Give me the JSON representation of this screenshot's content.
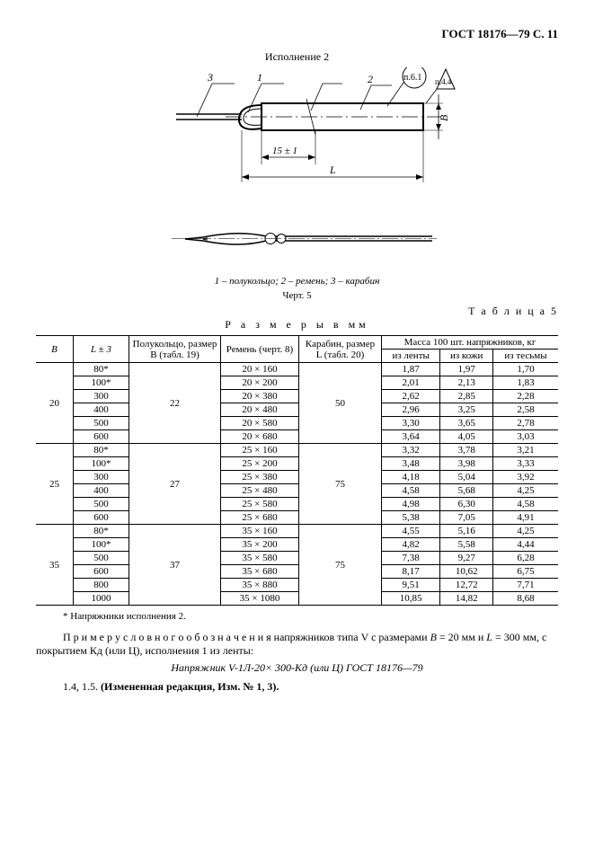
{
  "header": {
    "doc_id": "ГОСТ 18176—79 С. 11"
  },
  "drawing": {
    "variant_title": "Исполнение 2",
    "callout_1": "п.6.1",
    "callout_2": "п.4.4",
    "leader_1": "1",
    "leader_2": "2",
    "leader_3": "3",
    "dim_15": "15 ± 1",
    "dim_L": "L",
    "dim_B": "B",
    "caption_parts": "1 – полукольцо; 2 – ремень; 3 – карабин",
    "fig_label": "Черт. 5"
  },
  "table": {
    "label": "Т а б л и ц а  5",
    "units": "Р а з м е р ы  в  мм",
    "headers": {
      "B": "B",
      "L": "L ± 3",
      "ring": "Полукольцо, размер B (табл. 19)",
      "belt": "Ремень (черт. 8)",
      "carabine": "Карабин, размер L (табл. 20)",
      "mass_top": "Масса 100 шт. напряжников, кг",
      "mass_tape": "из ленты",
      "mass_leather": "из кожи",
      "mass_braid": "из тесьмы"
    },
    "groups": [
      {
        "B": "20",
        "ring": "22",
        "carabine": "50",
        "rows": [
          {
            "L": "80*",
            "belt": "20 × 160",
            "m1": "1,87",
            "m2": "1,97",
            "m3": "1,70"
          },
          {
            "L": "100*",
            "belt": "20 × 200",
            "m1": "2,01",
            "m2": "2,13",
            "m3": "1,83"
          },
          {
            "L": "300",
            "belt": "20 × 380",
            "m1": "2,62",
            "m2": "2,85",
            "m3": "2,28"
          },
          {
            "L": "400",
            "belt": "20 × 480",
            "m1": "2,96",
            "m2": "3,25",
            "m3": "2,58"
          },
          {
            "L": "500",
            "belt": "20 × 580",
            "m1": "3,30",
            "m2": "3,65",
            "m3": "2,78"
          },
          {
            "L": "600",
            "belt": "20 × 680",
            "m1": "3,64",
            "m2": "4,05",
            "m3": "3,03"
          }
        ]
      },
      {
        "B": "25",
        "ring": "27",
        "carabine": "75",
        "rows": [
          {
            "L": "80*",
            "belt": "25 × 160",
            "m1": "3,32",
            "m2": "3,78",
            "m3": "3,21"
          },
          {
            "L": "100*",
            "belt": "25 × 200",
            "m1": "3,48",
            "m2": "3,98",
            "m3": "3,33"
          },
          {
            "L": "300",
            "belt": "25 × 380",
            "m1": "4,18",
            "m2": "5,04",
            "m3": "3,92"
          },
          {
            "L": "400",
            "belt": "25 × 480",
            "m1": "4,58",
            "m2": "5,68",
            "m3": "4,25"
          },
          {
            "L": "500",
            "belt": "25 × 580",
            "m1": "4,98",
            "m2": "6,30",
            "m3": "4,58"
          },
          {
            "L": "600",
            "belt": "25 × 680",
            "m1": "5,38",
            "m2": "7,05",
            "m3": "4,91"
          }
        ]
      },
      {
        "B": "35",
        "ring": "37",
        "carabine": "75",
        "rows": [
          {
            "L": "80*",
            "belt": "35 × 160",
            "m1": "4,55",
            "m2": "5,16",
            "m3": "4,25"
          },
          {
            "L": "100*",
            "belt": "35 × 200",
            "m1": "4,82",
            "m2": "5,58",
            "m3": "4,44"
          },
          {
            "L": "500",
            "belt": "35 × 580",
            "m1": "7,38",
            "m2": "9,27",
            "m3": "6,28"
          },
          {
            "L": "600",
            "belt": "35 × 680",
            "m1": "8,17",
            "m2": "10,62",
            "m3": "6,75"
          },
          {
            "L": "800",
            "belt": "35 × 880",
            "m1": "9,51",
            "m2": "12,72",
            "m3": "7,71"
          },
          {
            "L": "1000",
            "belt": "35 × 1080",
            "m1": "10,85",
            "m2": "14,82",
            "m3": "8,68"
          }
        ]
      }
    ],
    "footnote": "* Напряжники исполнения 2."
  },
  "paragraphs": {
    "example_intro_a": "П р и м е р   у с л о в н о г о   о б о з н а ч е н и я   напряжников типа V с размерами ",
    "example_intro_b": "B",
    "example_intro_c": " = 20 мм и ",
    "example_intro_d": "L",
    "example_intro_e": " = 300 мм, с покрытием Кд (или Ц), исполнения 1 из ленты:",
    "example_code": "Напряжник V-1Л-20× 300-Кд (или Ц) ГОСТ 18176—79",
    "clause": "1.4, 1.5. ",
    "clause_bold": "(Измененная редакция, Изм. № 1, 3)."
  },
  "svg": {
    "stroke": "#000000",
    "fill": "#ffffff",
    "thin": 1,
    "thick": 2
  }
}
